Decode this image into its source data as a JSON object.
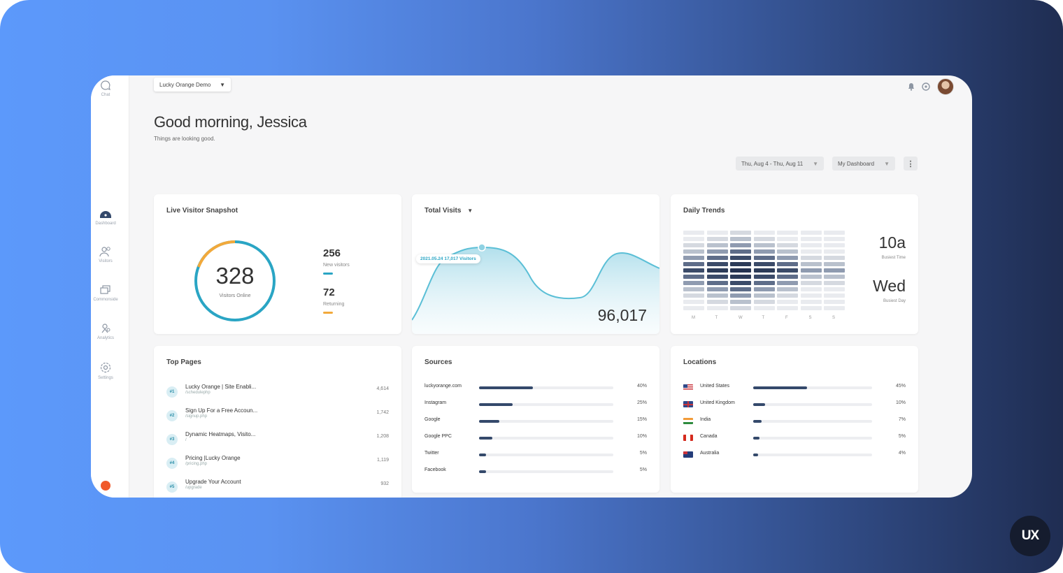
{
  "header": {
    "selector_label": "Lucky Orange Demo",
    "greeting": "Good morning, Jessica",
    "subtitle": "Things are looking good.",
    "date_range": "Thu, Aug 4 - Thu, Aug 11",
    "dashboard_select": "My Dashboard"
  },
  "sidebar": {
    "items": [
      {
        "label": "Chat",
        "icon": "chat-icon"
      },
      {
        "label": "Dashboard",
        "icon": "dashboard-icon"
      },
      {
        "label": "Visitors",
        "icon": "visitors-icon"
      },
      {
        "label": "Commonside",
        "icon": "recordings-icon"
      },
      {
        "label": "Analytics",
        "icon": "analytics-icon"
      },
      {
        "label": "Settings",
        "icon": "gear-icon"
      }
    ]
  },
  "live_snapshot": {
    "title": "Live Visitor Snapshot",
    "total": "328",
    "total_label": "Visitors Online",
    "new_value": "256",
    "new_label": "New visitors",
    "returning_value": "72",
    "returning_label": "Returning",
    "new_color": "#2aa5c4",
    "returning_color": "#f2a93b"
  },
  "total_visits": {
    "title": "Total Visits",
    "tooltip": "2021.05.24 17,017 Visitors",
    "total": "96,017",
    "line_color": "#5bbfd6"
  },
  "daily_trends": {
    "title": "Daily Trends",
    "days": [
      "M",
      "T",
      "W",
      "T",
      "F",
      "S",
      "S"
    ],
    "busiest_time": "10a",
    "busiest_time_label": "Busiest Time",
    "busiest_day": "Wed",
    "busiest_day_label": "Busiest Day"
  },
  "top_pages": {
    "title": "Top Pages",
    "rows": [
      {
        "rank": "#1",
        "title": "Lucky Orange | Site Enabli...",
        "url": "/schedulephp",
        "value": "4,614"
      },
      {
        "rank": "#2",
        "title": "Sign Up For a Free Accoun...",
        "url": "/signup.php",
        "value": "1,742"
      },
      {
        "rank": "#3",
        "title": "Dynamic Heatmaps, Visito...",
        "url": "/",
        "value": "1,208"
      },
      {
        "rank": "#4",
        "title": "Pricing |Lucky Orange",
        "url": "/pricing.php",
        "value": "1,119"
      },
      {
        "rank": "#5",
        "title": "Upgrade Your Account",
        "url": "/upgrade",
        "value": "932"
      }
    ]
  },
  "sources": {
    "title": "Sources",
    "rows": [
      {
        "label": "luckyorange.com",
        "pct": "40%",
        "value": 0.4
      },
      {
        "label": "Instagram",
        "pct": "25%",
        "value": 0.25
      },
      {
        "label": "Google",
        "pct": "15%",
        "value": 0.15
      },
      {
        "label": "Google PPC",
        "pct": "10%",
        "value": 0.1
      },
      {
        "label": "Twitter",
        "pct": "5%",
        "value": 0.05
      },
      {
        "label": "Facebook",
        "pct": "5%",
        "value": 0.05
      }
    ]
  },
  "locations": {
    "title": "Locations",
    "rows": [
      {
        "label": "United States",
        "pct": "45%",
        "value": 0.45
      },
      {
        "label": "United Kingdom",
        "pct": "10%",
        "value": 0.1
      },
      {
        "label": "India",
        "pct": "7%",
        "value": 0.07
      },
      {
        "label": "Canada",
        "pct": "5%",
        "value": 0.05
      },
      {
        "label": "Australia",
        "pct": "4%",
        "value": 0.04
      }
    ]
  },
  "brand_badge": "UX"
}
